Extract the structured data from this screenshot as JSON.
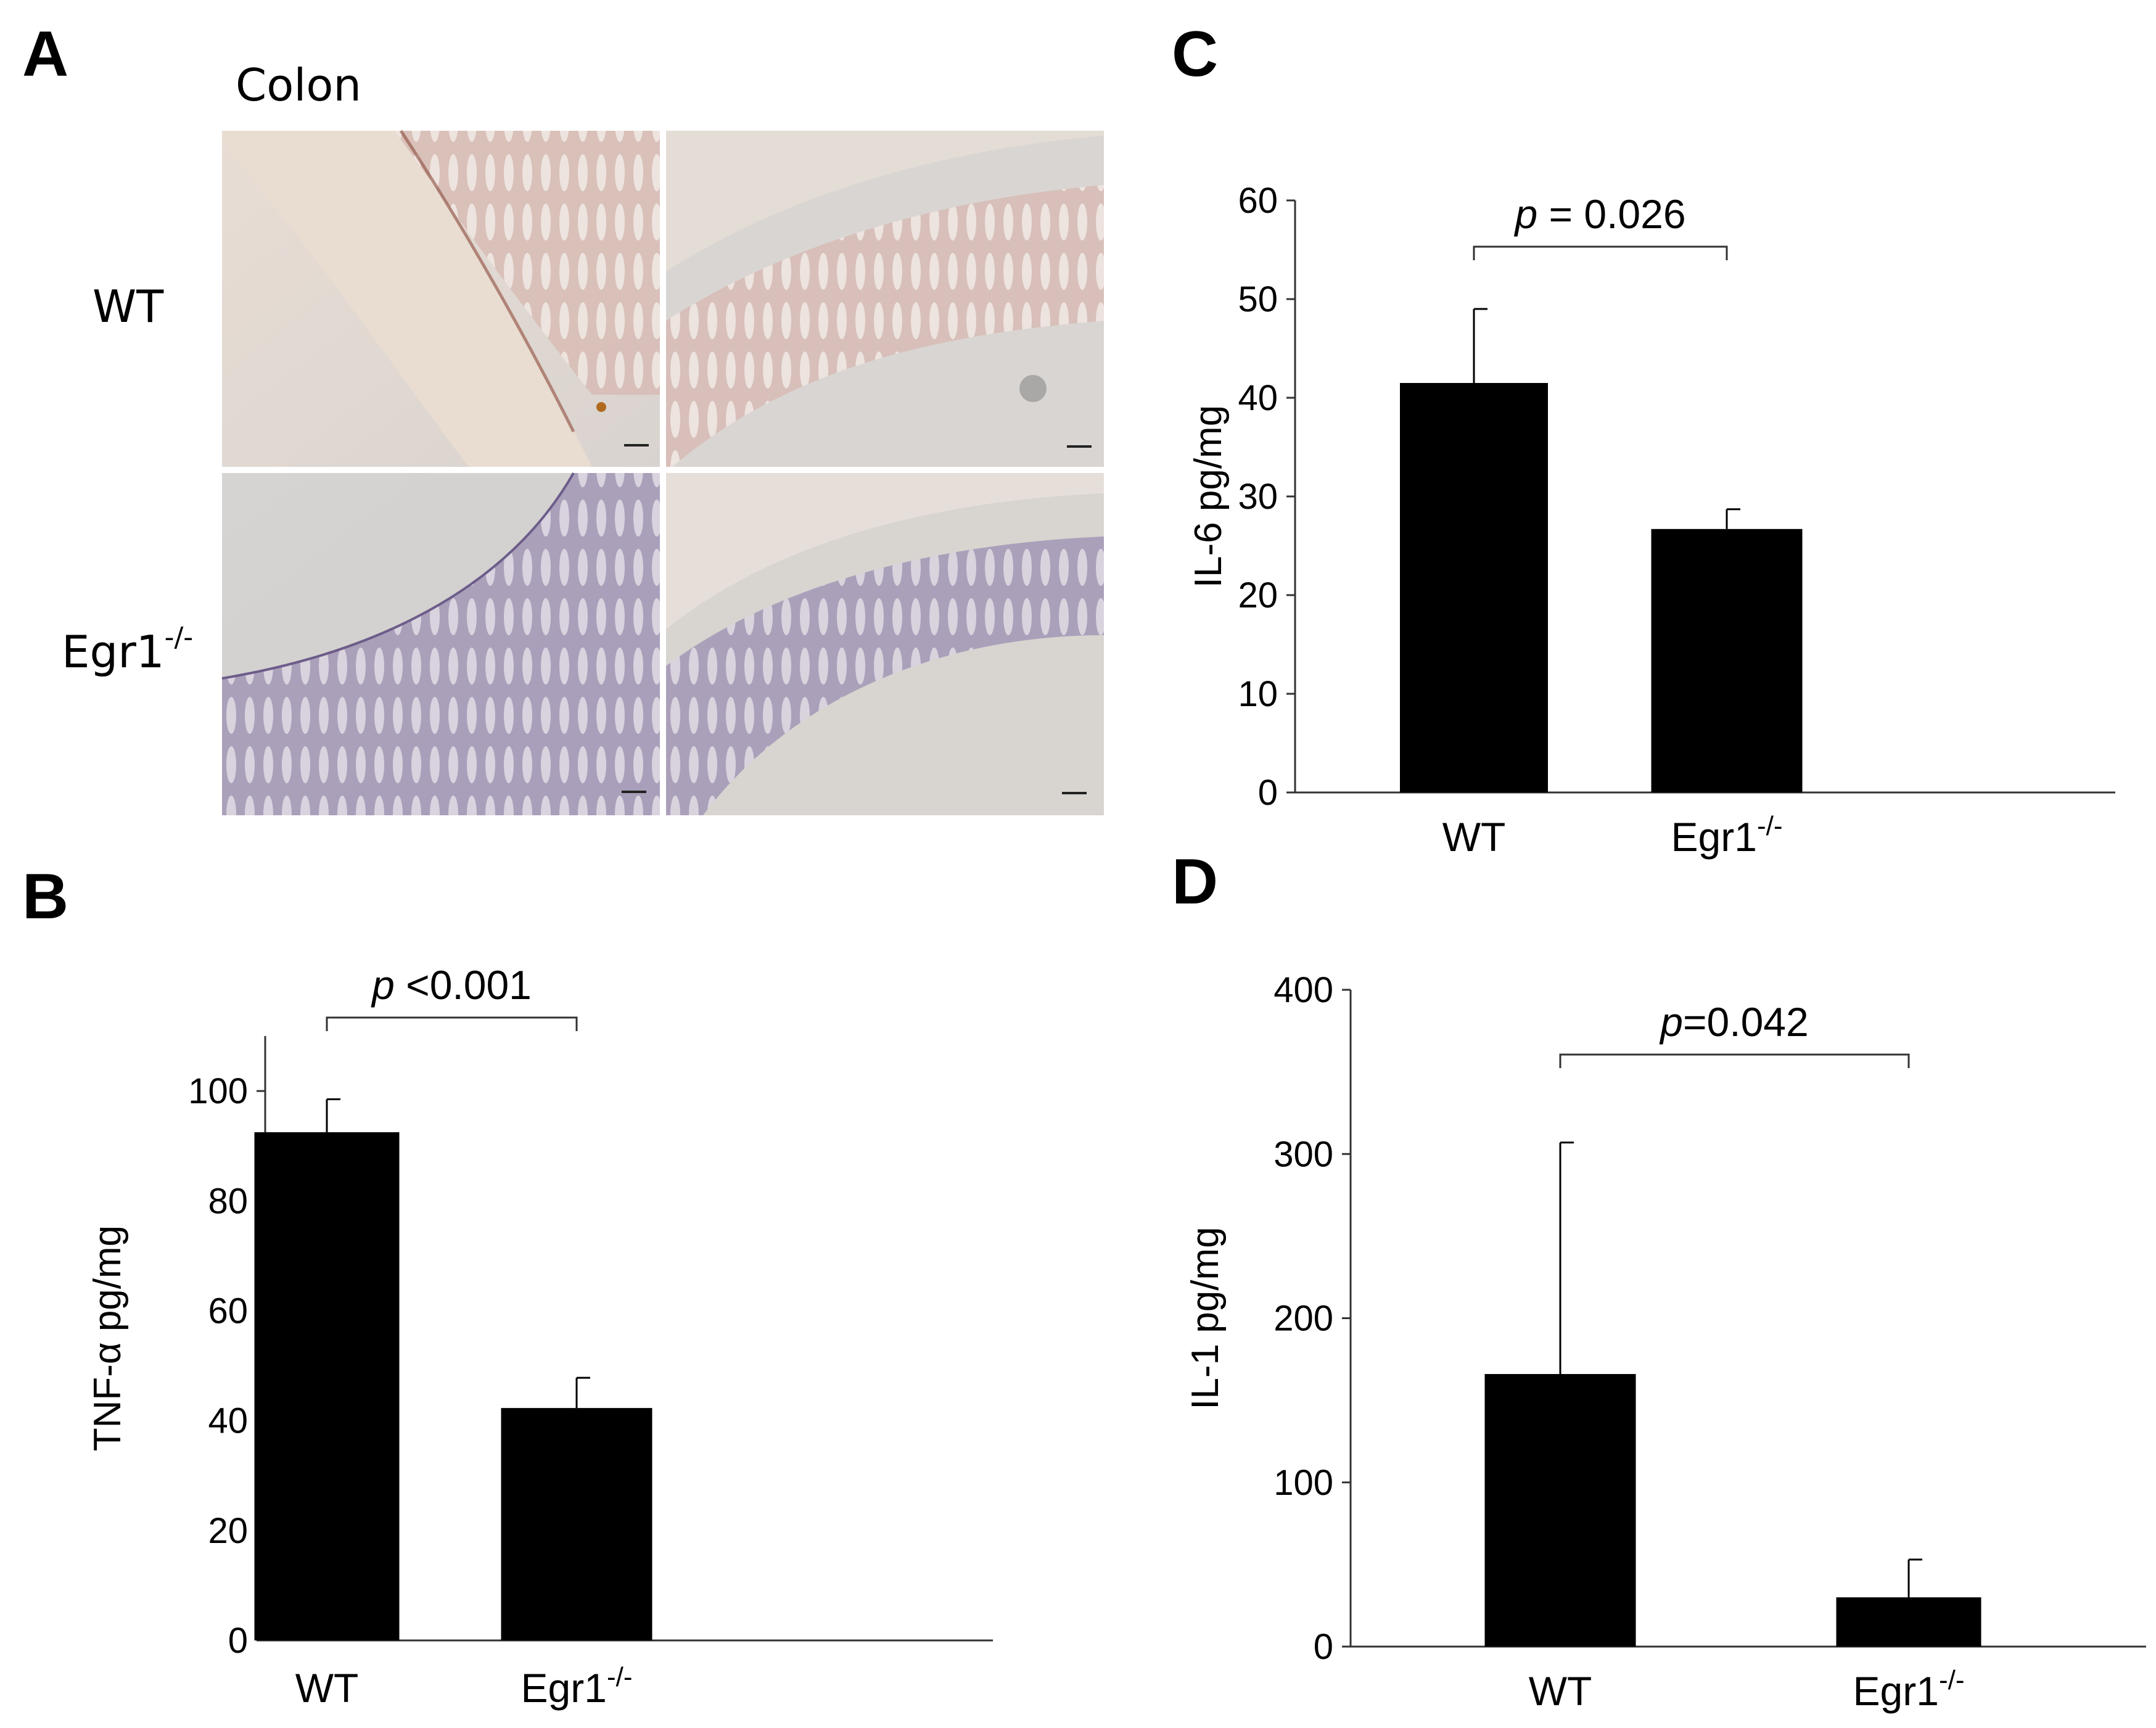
{
  "panels": {
    "A": {
      "letter": "A",
      "tissue_label": "Colon",
      "row_labels": [
        {
          "base": "WT",
          "sup": ""
        },
        {
          "base": "Egr1",
          "sup": "-/-"
        }
      ],
      "images": [
        {
          "name": "wt-colon-image-1",
          "stain": "brown-pink"
        },
        {
          "name": "wt-colon-image-2",
          "stain": "brown-pink"
        },
        {
          "name": "egr1-colon-image-1",
          "stain": "purple-blue"
        },
        {
          "name": "egr1-colon-image-2",
          "stain": "purple-blue"
        }
      ]
    },
    "B": {
      "letter": "B"
    },
    "C": {
      "letter": "C"
    },
    "D": {
      "letter": "D"
    }
  },
  "chart_data": [
    {
      "panel": "C",
      "type": "bar",
      "categories": [
        {
          "base": "WT",
          "sup": ""
        },
        {
          "base": "Egr1",
          "sup": "-/-"
        }
      ],
      "values": [
        41.5,
        26.7
      ],
      "errors": [
        7.5,
        2.0
      ],
      "ylabel": "IL-6  pg/mg",
      "ylim": [
        0,
        60
      ],
      "yticks": [
        0,
        10,
        20,
        30,
        40,
        50,
        60
      ],
      "significance": {
        "italic": "p",
        "rest": " = 0.026"
      },
      "bar_color": "#000000"
    },
    {
      "panel": "B",
      "type": "bar",
      "categories": [
        {
          "base": "WT",
          "sup": ""
        },
        {
          "base": "Egr1",
          "sup": "-/-"
        }
      ],
      "values": [
        92.5,
        42.3
      ],
      "errors": [
        6.0,
        5.5
      ],
      "ylabel": "TNF-α pg/mg",
      "ylim": [
        0,
        110
      ],
      "yticks": [
        0,
        20,
        40,
        60,
        80,
        100
      ],
      "significance": {
        "italic": "p",
        "rest": " <0.001"
      },
      "bar_color": "#000000"
    },
    {
      "panel": "D",
      "type": "bar",
      "categories": [
        {
          "base": "WT",
          "sup": ""
        },
        {
          "base": "Egr1",
          "sup": "-/-"
        }
      ],
      "values": [
        166,
        30
      ],
      "errors": [
        141,
        23
      ],
      "ylabel": "IL-1 pg/mg",
      "ylim": [
        0,
        400
      ],
      "yticks": [
        0,
        100,
        200,
        300,
        400
      ],
      "significance": {
        "italic": "p",
        "rest": "=0.042"
      },
      "bar_color": "#000000"
    }
  ]
}
